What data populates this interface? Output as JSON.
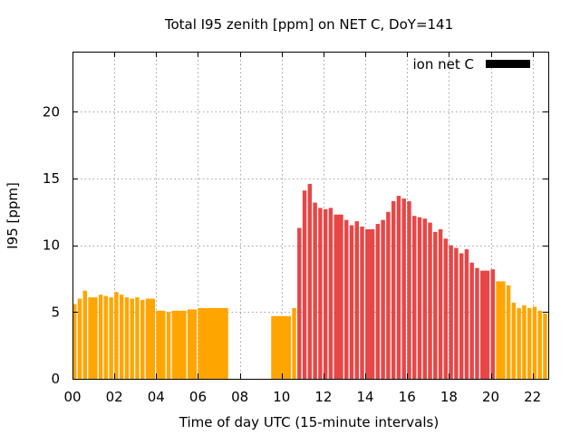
{
  "chart_data": {
    "type": "bar",
    "title": "Total I95 zenith [ppm] on NET C, DoY=141",
    "xlabel": "Time of day UTC (15-minute intervals)",
    "ylabel": "I95 [ppm]",
    "xlim": [
      0,
      22.75
    ],
    "ylim": [
      0,
      24.5
    ],
    "x_ticks": [
      {
        "value": 0,
        "label": "00"
      },
      {
        "value": 2,
        "label": "02"
      },
      {
        "value": 4,
        "label": "04"
      },
      {
        "value": 6,
        "label": "06"
      },
      {
        "value": 8,
        "label": "08"
      },
      {
        "value": 10,
        "label": "10"
      },
      {
        "value": 12,
        "label": "12"
      },
      {
        "value": 14,
        "label": "14"
      },
      {
        "value": 16,
        "label": "16"
      },
      {
        "value": 18,
        "label": "18"
      },
      {
        "value": 20,
        "label": "20"
      },
      {
        "value": 22,
        "label": "22"
      }
    ],
    "y_ticks": [
      {
        "value": 0,
        "label": "0"
      },
      {
        "value": 5,
        "label": "5"
      },
      {
        "value": 10,
        "label": "10"
      },
      {
        "value": 15,
        "label": "15"
      },
      {
        "value": 20,
        "label": "20"
      }
    ],
    "grid": true,
    "legend": {
      "label": "ion net C",
      "color": "#000000",
      "placement": "top-right"
    },
    "colors": {
      "low": "#ffa500",
      "high": "#e84646"
    },
    "bars": [
      {
        "x": 0.0,
        "y": 5.6,
        "c": "low"
      },
      {
        "x": 0.25,
        "y": 6.0,
        "c": "low"
      },
      {
        "x": 0.5,
        "y": 6.6,
        "c": "low"
      },
      {
        "x": 0.75,
        "y": 6.1,
        "c": "low"
      },
      {
        "x": 1.0,
        "y": 6.1,
        "c": "low"
      },
      {
        "x": 1.25,
        "y": 6.3,
        "c": "low"
      },
      {
        "x": 1.5,
        "y": 6.2,
        "c": "low"
      },
      {
        "x": 1.75,
        "y": 6.1,
        "c": "low"
      },
      {
        "x": 2.0,
        "y": 6.5,
        "c": "low"
      },
      {
        "x": 2.25,
        "y": 6.3,
        "c": "low"
      },
      {
        "x": 2.5,
        "y": 6.1,
        "c": "low"
      },
      {
        "x": 2.75,
        "y": 6.0,
        "c": "low"
      },
      {
        "x": 3.0,
        "y": 6.1,
        "c": "low"
      },
      {
        "x": 3.25,
        "y": 5.9,
        "c": "low"
      },
      {
        "x": 3.5,
        "y": 6.0,
        "c": "low"
      },
      {
        "x": 3.75,
        "y": 6.0,
        "c": "low"
      },
      {
        "x": 4.0,
        "y": 5.1,
        "c": "low"
      },
      {
        "x": 4.25,
        "y": 5.1,
        "c": "low"
      },
      {
        "x": 4.5,
        "y": 5.0,
        "c": "low"
      },
      {
        "x": 4.75,
        "y": 5.1,
        "c": "low"
      },
      {
        "x": 5.0,
        "y": 5.1,
        "c": "low"
      },
      {
        "x": 5.25,
        "y": 5.1,
        "c": "low"
      },
      {
        "x": 5.5,
        "y": 5.2,
        "c": "low"
      },
      {
        "x": 5.75,
        "y": 5.2,
        "c": "low"
      },
      {
        "x": 6.0,
        "y": 5.3,
        "c": "low"
      },
      {
        "x": 6.25,
        "y": 5.3,
        "c": "low"
      },
      {
        "x": 6.5,
        "y": 5.3,
        "c": "low"
      },
      {
        "x": 6.75,
        "y": 5.3,
        "c": "low"
      },
      {
        "x": 7.0,
        "y": 5.3,
        "c": "low"
      },
      {
        "x": 7.25,
        "y": 5.3,
        "c": "low"
      },
      {
        "x": 9.5,
        "y": 4.7,
        "c": "low"
      },
      {
        "x": 9.75,
        "y": 4.7,
        "c": "low"
      },
      {
        "x": 10.0,
        "y": 4.7,
        "c": "low"
      },
      {
        "x": 10.25,
        "y": 4.7,
        "c": "low"
      },
      {
        "x": 10.5,
        "y": 5.3,
        "c": "low"
      },
      {
        "x": 10.75,
        "y": 11.3,
        "c": "high"
      },
      {
        "x": 11.0,
        "y": 14.1,
        "c": "high"
      },
      {
        "x": 11.25,
        "y": 14.6,
        "c": "high"
      },
      {
        "x": 11.5,
        "y": 13.2,
        "c": "high"
      },
      {
        "x": 11.75,
        "y": 12.8,
        "c": "high"
      },
      {
        "x": 12.0,
        "y": 12.7,
        "c": "high"
      },
      {
        "x": 12.25,
        "y": 12.8,
        "c": "high"
      },
      {
        "x": 12.5,
        "y": 12.3,
        "c": "high"
      },
      {
        "x": 12.75,
        "y": 12.3,
        "c": "high"
      },
      {
        "x": 13.0,
        "y": 11.9,
        "c": "high"
      },
      {
        "x": 13.25,
        "y": 11.5,
        "c": "high"
      },
      {
        "x": 13.5,
        "y": 11.8,
        "c": "high"
      },
      {
        "x": 13.75,
        "y": 11.4,
        "c": "high"
      },
      {
        "x": 14.0,
        "y": 11.2,
        "c": "high"
      },
      {
        "x": 14.25,
        "y": 11.2,
        "c": "high"
      },
      {
        "x": 14.5,
        "y": 11.6,
        "c": "high"
      },
      {
        "x": 14.75,
        "y": 11.9,
        "c": "high"
      },
      {
        "x": 15.0,
        "y": 12.5,
        "c": "high"
      },
      {
        "x": 15.25,
        "y": 13.3,
        "c": "high"
      },
      {
        "x": 15.5,
        "y": 13.7,
        "c": "high"
      },
      {
        "x": 15.75,
        "y": 13.5,
        "c": "high"
      },
      {
        "x": 16.0,
        "y": 13.3,
        "c": "high"
      },
      {
        "x": 16.25,
        "y": 12.2,
        "c": "high"
      },
      {
        "x": 16.5,
        "y": 12.1,
        "c": "high"
      },
      {
        "x": 16.75,
        "y": 12.0,
        "c": "high"
      },
      {
        "x": 17.0,
        "y": 11.7,
        "c": "high"
      },
      {
        "x": 17.25,
        "y": 11.0,
        "c": "high"
      },
      {
        "x": 17.5,
        "y": 11.2,
        "c": "high"
      },
      {
        "x": 17.75,
        "y": 10.5,
        "c": "high"
      },
      {
        "x": 18.0,
        "y": 10.0,
        "c": "high"
      },
      {
        "x": 18.25,
        "y": 9.8,
        "c": "high"
      },
      {
        "x": 18.5,
        "y": 9.4,
        "c": "high"
      },
      {
        "x": 18.75,
        "y": 9.7,
        "c": "high"
      },
      {
        "x": 19.0,
        "y": 8.7,
        "c": "high"
      },
      {
        "x": 19.25,
        "y": 8.3,
        "c": "high"
      },
      {
        "x": 19.5,
        "y": 8.1,
        "c": "high"
      },
      {
        "x": 19.75,
        "y": 8.1,
        "c": "high"
      },
      {
        "x": 20.0,
        "y": 8.2,
        "c": "high"
      },
      {
        "x": 20.25,
        "y": 7.3,
        "c": "low"
      },
      {
        "x": 20.5,
        "y": 7.3,
        "c": "low"
      },
      {
        "x": 20.75,
        "y": 7.0,
        "c": "low"
      },
      {
        "x": 21.0,
        "y": 5.7,
        "c": "low"
      },
      {
        "x": 21.25,
        "y": 5.3,
        "c": "low"
      },
      {
        "x": 21.5,
        "y": 5.5,
        "c": "low"
      },
      {
        "x": 21.75,
        "y": 5.3,
        "c": "low"
      },
      {
        "x": 22.0,
        "y": 5.4,
        "c": "low"
      },
      {
        "x": 22.25,
        "y": 5.1,
        "c": "low"
      },
      {
        "x": 22.5,
        "y": 4.9,
        "c": "low"
      }
    ]
  }
}
